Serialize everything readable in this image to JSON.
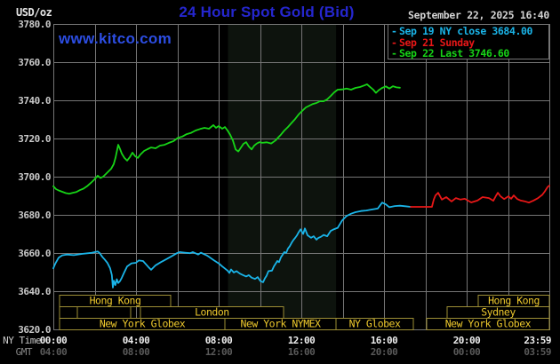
{
  "header": {
    "units_label": "USD/oz",
    "title": "24 Hour Spot Gold (Bid)",
    "watermark": "www.kitco.com",
    "datetime": "September 22, 2025 16:40"
  },
  "legend": {
    "items": [
      {
        "marker": "-",
        "text": "Sep 19 NY close 3684.00",
        "color": "#1ab4e8"
      },
      {
        "marker": "-",
        "text": "Sep 21 Sunday",
        "color": "#e81717"
      },
      {
        "marker": "-",
        "text": "Sep 22 Last 3746.60",
        "color": "#17d417"
      }
    ]
  },
  "axis": {
    "ny_label": "NY Time",
    "gmt_label": "GMT",
    "ny_ticks": [
      {
        "hour": 0,
        "label": "00:00"
      },
      {
        "hour": 4,
        "label": "04:00"
      },
      {
        "hour": 8,
        "label": "08:00"
      },
      {
        "hour": 12,
        "label": "12:00"
      },
      {
        "hour": 16,
        "label": "16:00"
      },
      {
        "hour": 20,
        "label": "20:00"
      },
      {
        "hour": 23.983,
        "label": "23:59"
      }
    ],
    "gmt_ticks": [
      {
        "hour": 0,
        "label": "04:00"
      },
      {
        "hour": 4,
        "label": "08:00"
      },
      {
        "hour": 8,
        "label": "12:00"
      },
      {
        "hour": 12,
        "label": "16:00"
      },
      {
        "hour": 16,
        "label": "20:00"
      },
      {
        "hour": 20,
        "label": "00:00"
      },
      {
        "hour": 23.983,
        "label": "03:59"
      }
    ]
  },
  "chart_data": {
    "type": "line",
    "title": "24 Hour Spot Gold (Bid)",
    "y_axis": {
      "units": "USD/oz",
      "min": 3620,
      "max": 3780,
      "step": 20
    },
    "y_tick_labels": [
      "3620.0",
      "3640.0",
      "3660.0",
      "3680.0",
      "3700.0",
      "3720.0",
      "3740.0",
      "3760.0",
      "3780.0"
    ],
    "x_axis": {
      "range_hours": [
        0,
        24
      ],
      "timezone_rows": [
        "NY Time",
        "GMT"
      ]
    },
    "grid": {
      "x_step_hours": 2,
      "y_step": 20
    },
    "colors": {
      "background": "#000000",
      "grid": "#757575",
      "band": "#0d130d",
      "session_border": "#9d8e35",
      "session_label": "#eec92d"
    },
    "nymex_band_hours": [
      8.45,
      13.68
    ],
    "series": [
      {
        "name": "Sep 22 Last",
        "color": "#17d417",
        "points": [
          [
            0,
            3695
          ],
          [
            0.13,
            3693.5
          ],
          [
            0.26,
            3692.8
          ],
          [
            0.43,
            3692.1
          ],
          [
            0.6,
            3691.4
          ],
          [
            0.77,
            3691
          ],
          [
            0.95,
            3691.6
          ],
          [
            1.12,
            3692
          ],
          [
            1.29,
            3693
          ],
          [
            1.46,
            3693.7
          ],
          [
            1.63,
            3695
          ],
          [
            1.81,
            3696.7
          ],
          [
            1.98,
            3698.4
          ],
          [
            2.15,
            3700.5
          ],
          [
            2.28,
            3699.3
          ],
          [
            2.41,
            3700
          ],
          [
            2.54,
            3701.4
          ],
          [
            2.67,
            3702.8
          ],
          [
            2.8,
            3704.2
          ],
          [
            2.92,
            3706.5
          ],
          [
            3.01,
            3710
          ],
          [
            3.14,
            3716.7
          ],
          [
            3.23,
            3714.4
          ],
          [
            3.31,
            3712.1
          ],
          [
            3.44,
            3709.8
          ],
          [
            3.57,
            3708.4
          ],
          [
            3.7,
            3710.2
          ],
          [
            3.83,
            3712.6
          ],
          [
            3.96,
            3710.7
          ],
          [
            4.09,
            3709.8
          ],
          [
            4.21,
            3711.6
          ],
          [
            4.39,
            3713.5
          ],
          [
            4.56,
            3714.4
          ],
          [
            4.73,
            3715.3
          ],
          [
            4.95,
            3714.9
          ],
          [
            5.16,
            3716.3
          ],
          [
            5.38,
            3716.7
          ],
          [
            5.59,
            3717.7
          ],
          [
            5.81,
            3718.6
          ],
          [
            6.02,
            3720.3
          ],
          [
            6.24,
            3721
          ],
          [
            6.45,
            3722.3
          ],
          [
            6.67,
            3723
          ],
          [
            6.88,
            3724.2
          ],
          [
            7.1,
            3725
          ],
          [
            7.31,
            3725.6
          ],
          [
            7.53,
            3725.1
          ],
          [
            7.74,
            3727
          ],
          [
            7.87,
            3725.6
          ],
          [
            8,
            3726.5
          ],
          [
            8.17,
            3725.1
          ],
          [
            8.3,
            3726
          ],
          [
            8.43,
            3724.2
          ],
          [
            8.56,
            3721.9
          ],
          [
            8.69,
            3719
          ],
          [
            8.82,
            3714.3
          ],
          [
            8.95,
            3713.2
          ],
          [
            9.08,
            3715.3
          ],
          [
            9.2,
            3717.2
          ],
          [
            9.33,
            3718.1
          ],
          [
            9.46,
            3715.8
          ],
          [
            9.59,
            3714.3
          ],
          [
            9.72,
            3716.3
          ],
          [
            9.85,
            3717.4
          ],
          [
            9.98,
            3718.1
          ],
          [
            10.11,
            3717.7
          ],
          [
            10.32,
            3718
          ],
          [
            10.54,
            3717.4
          ],
          [
            10.75,
            3719
          ],
          [
            10.88,
            3720.5
          ],
          [
            11.01,
            3722
          ],
          [
            11.18,
            3724.2
          ],
          [
            11.35,
            3726
          ],
          [
            11.53,
            3728.2
          ],
          [
            11.7,
            3730.2
          ],
          [
            11.87,
            3732.6
          ],
          [
            12.04,
            3734.4
          ],
          [
            12.22,
            3736.3
          ],
          [
            12.39,
            3737.2
          ],
          [
            12.56,
            3738.1
          ],
          [
            12.73,
            3738.6
          ],
          [
            12.9,
            3739.5
          ],
          [
            13.08,
            3739.5
          ],
          [
            13.25,
            3740.5
          ],
          [
            13.42,
            3742.3
          ],
          [
            13.59,
            3744.2
          ],
          [
            13.76,
            3745.6
          ],
          [
            13.98,
            3745.7
          ],
          [
            14.19,
            3746.2
          ],
          [
            14.41,
            3745.6
          ],
          [
            14.62,
            3746.5
          ],
          [
            14.84,
            3747
          ],
          [
            15.05,
            3747.8
          ],
          [
            15.18,
            3748.4
          ],
          [
            15.31,
            3747.1
          ],
          [
            15.48,
            3745.6
          ],
          [
            15.61,
            3743.9
          ],
          [
            15.74,
            3745.3
          ],
          [
            15.91,
            3746.5
          ],
          [
            16.09,
            3747.3
          ],
          [
            16.26,
            3746.2
          ],
          [
            16.43,
            3747.4
          ],
          [
            16.6,
            3746.8
          ],
          [
            16.77,
            3746.6
          ]
        ]
      },
      {
        "name": "Sep 19 NY close",
        "color": "#1ab4e8",
        "points": [
          [
            0,
            3652
          ],
          [
            0.1,
            3654.5
          ],
          [
            0.26,
            3657.6
          ],
          [
            0.43,
            3658.8
          ],
          [
            0.65,
            3659.2
          ],
          [
            0.99,
            3658.9
          ],
          [
            1.42,
            3659.6
          ],
          [
            1.85,
            3660.1
          ],
          [
            2.15,
            3660.8
          ],
          [
            2.24,
            3660
          ],
          [
            2.37,
            3658
          ],
          [
            2.5,
            3656.4
          ],
          [
            2.62,
            3654.8
          ],
          [
            2.75,
            3652
          ],
          [
            2.83,
            3648.5
          ],
          [
            2.88,
            3641.9
          ],
          [
            2.93,
            3645.5
          ],
          [
            3,
            3643.2
          ],
          [
            3.07,
            3646.3
          ],
          [
            3.14,
            3644.3
          ],
          [
            3.22,
            3645.2
          ],
          [
            3.31,
            3647
          ],
          [
            3.44,
            3650.1
          ],
          [
            3.57,
            3653
          ],
          [
            3.78,
            3654.6
          ],
          [
            4,
            3654.9
          ],
          [
            4.13,
            3656.1
          ],
          [
            4.34,
            3655.8
          ],
          [
            4.6,
            3652.7
          ],
          [
            4.73,
            3651.2
          ],
          [
            4.95,
            3653.6
          ],
          [
            5.2,
            3655.2
          ],
          [
            5.46,
            3656.7
          ],
          [
            5.72,
            3658.3
          ],
          [
            5.98,
            3659.9
          ],
          [
            6.11,
            3660.5
          ],
          [
            6.37,
            3660.2
          ],
          [
            6.62,
            3659.9
          ],
          [
            6.75,
            3660.5
          ],
          [
            7.01,
            3659.2
          ],
          [
            7.14,
            3660.2
          ],
          [
            7.27,
            3659.5
          ],
          [
            7.4,
            3658.9
          ],
          [
            7.53,
            3658
          ],
          [
            7.78,
            3656.1
          ],
          [
            8.04,
            3654.3
          ],
          [
            8.17,
            3653
          ],
          [
            8.43,
            3650.8
          ],
          [
            8.52,
            3649.6
          ],
          [
            8.6,
            3651.4
          ],
          [
            8.73,
            3649.8
          ],
          [
            8.86,
            3650.5
          ],
          [
            9.03,
            3649.2
          ],
          [
            9.16,
            3648.5
          ],
          [
            9.33,
            3647.7
          ],
          [
            9.46,
            3648.4
          ],
          [
            9.59,
            3647.1
          ],
          [
            9.76,
            3646.4
          ],
          [
            9.89,
            3647.4
          ],
          [
            10.02,
            3645.3
          ],
          [
            10.15,
            3644.7
          ],
          [
            10.24,
            3646.8
          ],
          [
            10.32,
            3648.1
          ],
          [
            10.41,
            3650.5
          ],
          [
            10.58,
            3650.8
          ],
          [
            10.67,
            3653
          ],
          [
            10.84,
            3655.8
          ],
          [
            10.92,
            3655.2
          ],
          [
            11.01,
            3657.7
          ],
          [
            11.1,
            3659.2
          ],
          [
            11.18,
            3660.5
          ],
          [
            11.27,
            3660.1
          ],
          [
            11.35,
            3662.3
          ],
          [
            11.44,
            3663.6
          ],
          [
            11.53,
            3665.4
          ],
          [
            11.61,
            3666.7
          ],
          [
            11.7,
            3667.9
          ],
          [
            11.78,
            3669.1
          ],
          [
            11.87,
            3670.9
          ],
          [
            11.96,
            3672.4
          ],
          [
            12.09,
            3670
          ],
          [
            12.17,
            3672.9
          ],
          [
            12.3,
            3669.3
          ],
          [
            12.47,
            3668
          ],
          [
            12.6,
            3668.8
          ],
          [
            12.73,
            3667
          ],
          [
            12.82,
            3667.9
          ],
          [
            12.95,
            3668.5
          ],
          [
            13.08,
            3669.5
          ],
          [
            13.25,
            3668.8
          ],
          [
            13.42,
            3671.6
          ],
          [
            13.59,
            3672.5
          ],
          [
            13.76,
            3673.2
          ],
          [
            13.98,
            3677.1
          ],
          [
            14.19,
            3679.4
          ],
          [
            14.41,
            3680.6
          ],
          [
            14.62,
            3681.4
          ],
          [
            14.88,
            3682
          ],
          [
            15.14,
            3682.3
          ],
          [
            15.4,
            3682.8
          ],
          [
            15.7,
            3683.3
          ],
          [
            15.91,
            3686.4
          ],
          [
            16.09,
            3685.5
          ],
          [
            16.26,
            3684
          ],
          [
            16.52,
            3684.6
          ],
          [
            16.77,
            3684.8
          ],
          [
            17.03,
            3684.5
          ],
          [
            17.29,
            3684.2
          ]
        ]
      },
      {
        "name": "Sep 21 Sunday",
        "color": "#e81717",
        "points": [
          [
            17.29,
            3684.2
          ],
          [
            18.32,
            3684.2
          ],
          [
            18.41,
            3688
          ],
          [
            18.49,
            3690.2
          ],
          [
            18.62,
            3691.6
          ],
          [
            18.8,
            3688
          ],
          [
            19.01,
            3689.3
          ],
          [
            19.27,
            3687
          ],
          [
            19.48,
            3688.8
          ],
          [
            19.7,
            3688
          ],
          [
            19.91,
            3688.4
          ],
          [
            20.22,
            3686.5
          ],
          [
            20.52,
            3687.5
          ],
          [
            20.77,
            3689.3
          ],
          [
            21.08,
            3688.8
          ],
          [
            21.29,
            3687.4
          ],
          [
            21.42,
            3690
          ],
          [
            21.51,
            3691.6
          ],
          [
            21.63,
            3689.8
          ],
          [
            21.81,
            3688.3
          ],
          [
            22.02,
            3689.7
          ],
          [
            22.15,
            3688.4
          ],
          [
            22.28,
            3690.2
          ],
          [
            22.45,
            3688.3
          ],
          [
            22.62,
            3687.5
          ],
          [
            22.8,
            3687.1
          ],
          [
            23.01,
            3686.4
          ],
          [
            23.23,
            3687.5
          ],
          [
            23.44,
            3688.7
          ],
          [
            23.66,
            3690.5
          ],
          [
            23.78,
            3692.3
          ],
          [
            23.91,
            3694.5
          ],
          [
            24,
            3695.3
          ]
        ]
      }
    ],
    "sessions": [
      {
        "row": 1,
        "label": "Hong Kong",
        "start": 0.3,
        "end": 5.68
      },
      {
        "row": 1,
        "label": "Hong Kong",
        "start": 20.56,
        "end": 24
      },
      {
        "row": 2,
        "label": "",
        "start": 0.3,
        "end": 1.16
      },
      {
        "row": 2,
        "label": "",
        "start": 1.16,
        "end": 3.74
      },
      {
        "row": 2,
        "label": "London",
        "start": 4.21,
        "end": 11.14
      },
      {
        "row": 2,
        "label": "Sydney",
        "start": 19.05,
        "end": 24
      },
      {
        "row": 3,
        "label": "New York Globex",
        "start": 0.3,
        "end": 8.3
      },
      {
        "row": 3,
        "label": "New York NYMEX",
        "start": 8.3,
        "end": 13.68
      },
      {
        "row": 3,
        "label": "NY Globex",
        "start": 13.68,
        "end": 17.42
      },
      {
        "row": 3,
        "label": "New York Globex",
        "start": 18.06,
        "end": 24
      }
    ]
  }
}
